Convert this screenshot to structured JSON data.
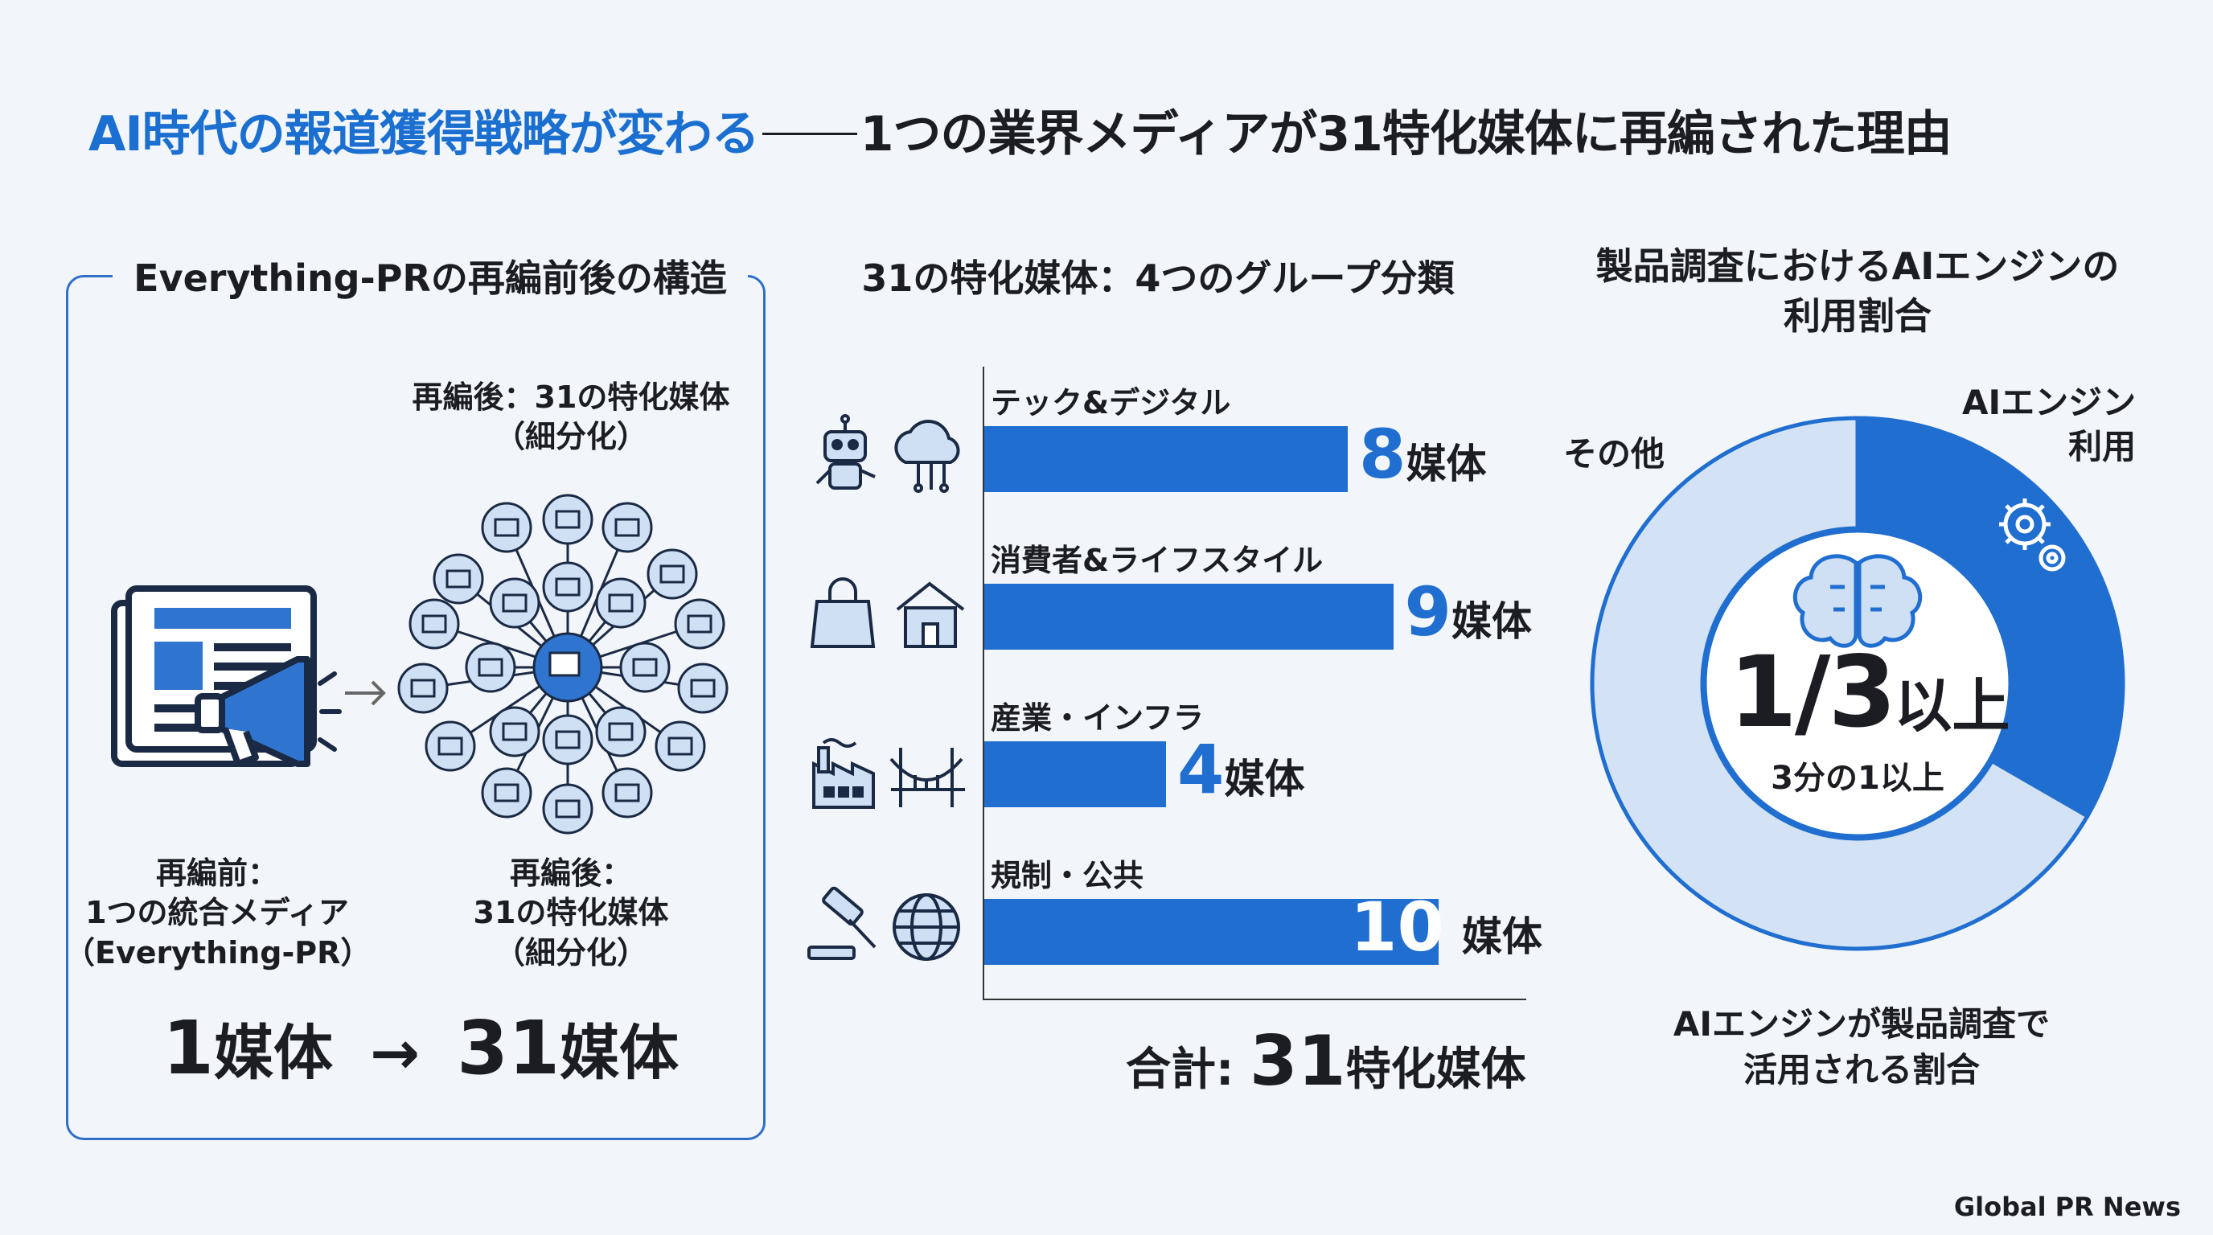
{
  "title": {
    "part1": "AI時代の報道獲得戦略が変わる",
    "part2": "1つの業界メディアが31特化媒体に再編された理由"
  },
  "left_panel": {
    "heading": "Everything-PRの再編前後の構造",
    "after_top_label_line1": "再編後：31の特化媒体",
    "after_top_label_line2": "（細分化）",
    "before_label_line1": "再編前：",
    "before_label_line2": "1つの統合メディア",
    "before_label_line3": "（Everything-PR）",
    "after_label_line1": "再編後：",
    "after_label_line2": "31の特化媒体",
    "after_label_line3": "（細分化）",
    "from_num": "1",
    "from_unit": "媒体",
    "arrow": "→",
    "to_num": "31",
    "to_unit": "媒体"
  },
  "middle_panel": {
    "heading": "31の特化媒体：4つのグループ分類",
    "unit": "媒体",
    "total_prefix": "合計: ",
    "total_num": "31",
    "total_suffix": "特化媒体"
  },
  "right_panel": {
    "heading_line1": "製品調査におけるAIエンジンの",
    "heading_line2": "利用割合",
    "label_ai_line1": "AIエンジン",
    "label_ai_line2": "利用",
    "label_other": "その他",
    "center_big": "1/3",
    "center_big_unit": "以上",
    "center_sub": "3分の1以上",
    "note_line1": "AIエンジンが製品調査で",
    "note_line2": "活用される割合"
  },
  "source": "Global PR News",
  "colors": {
    "accent": "#1f6ed0",
    "light": "#d3e2f4",
    "text": "#1b1d22",
    "background": "#f2f5fa"
  },
  "chart_data": [
    {
      "type": "bar",
      "orientation": "horizontal",
      "title": "31の特化媒体：4つのグループ分類",
      "categories": [
        "テック&デジタル",
        "消費者&ライフスタイル",
        "産業・インフラ",
        "規制・公共"
      ],
      "values": [
        8,
        9,
        4,
        10
      ],
      "value_labels": [
        "8",
        "9",
        "4",
        "10"
      ],
      "icons": [
        [
          "robot-icon",
          "cloud-network-icon"
        ],
        [
          "shopping-bag-icon",
          "house-icon"
        ],
        [
          "factory-icon",
          "bridge-icon"
        ],
        [
          "gavel-icon",
          "globe-icon"
        ]
      ],
      "xlim": [
        0,
        11
      ],
      "grid": false
    },
    {
      "type": "pie",
      "style": "donut",
      "title": "製品調査におけるAIエンジンの利用割合",
      "labels": [
        "AIエンジン利用",
        "その他"
      ],
      "values": [
        0.3333,
        0.6667
      ],
      "colors": [
        "#1f6ed0",
        "#d3e2f4"
      ]
    }
  ]
}
